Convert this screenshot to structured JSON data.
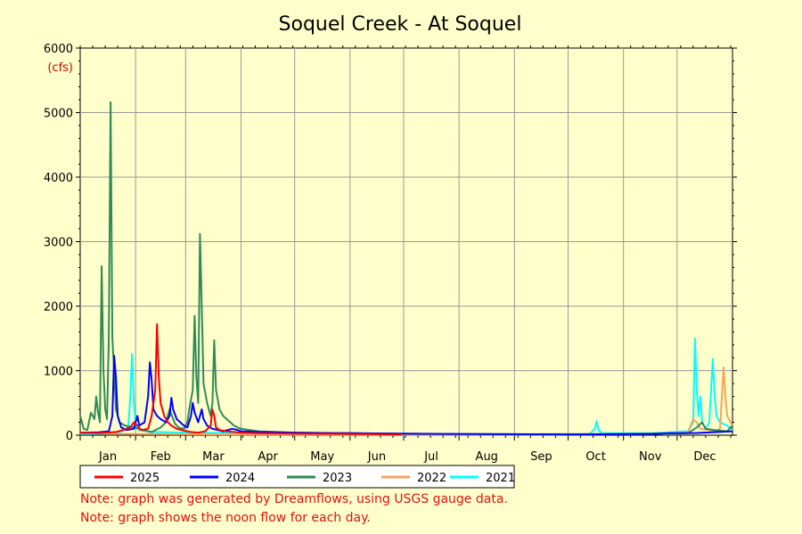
{
  "chart_data": {
    "type": "line",
    "title": "Soquel Creek - At Soquel",
    "ylabel": "(cfs)",
    "xlabel": "",
    "ylim": [
      0,
      6000
    ],
    "y_ticks": [
      0,
      1000,
      2000,
      3000,
      4000,
      5000,
      6000
    ],
    "x_range_days": [
      0,
      365
    ],
    "month_labels": [
      "Jan",
      "Feb",
      "Mar",
      "Apr",
      "May",
      "Jun",
      "Jul",
      "Aug",
      "Sep",
      "Oct",
      "Nov",
      "Dec"
    ],
    "grid": true,
    "legend_placement": "bottom-left",
    "series": [
      {
        "name": "2025",
        "color": "#ff0000",
        "points": [
          [
            0,
            40
          ],
          [
            10,
            35
          ],
          [
            20,
            50
          ],
          [
            25,
            90
          ],
          [
            28,
            120
          ],
          [
            30,
            200
          ],
          [
            32,
            150
          ],
          [
            34,
            80
          ],
          [
            38,
            100
          ],
          [
            40,
            300
          ],
          [
            42,
            700
          ],
          [
            43,
            1720
          ],
          [
            44,
            900
          ],
          [
            45,
            500
          ],
          [
            47,
            300
          ],
          [
            49,
            200
          ],
          [
            51,
            150
          ],
          [
            54,
            100
          ],
          [
            58,
            70
          ],
          [
            62,
            50
          ],
          [
            66,
            40
          ],
          [
            70,
            60
          ],
          [
            73,
            150
          ],
          [
            74,
            400
          ],
          [
            75,
            300
          ],
          [
            76,
            120
          ],
          [
            78,
            80
          ],
          [
            82,
            60
          ],
          [
            90,
            40
          ],
          [
            100,
            30
          ],
          [
            120,
            25
          ],
          [
            150,
            20
          ],
          [
            165,
            15
          ],
          [
            180,
            10
          ]
        ]
      },
      {
        "name": "2024",
        "color": "#0000ff",
        "points": [
          [
            0,
            40
          ],
          [
            10,
            45
          ],
          [
            16,
            60
          ],
          [
            18,
            300
          ],
          [
            19,
            1230
          ],
          [
            20,
            900
          ],
          [
            21,
            300
          ],
          [
            23,
            120
          ],
          [
            26,
            80
          ],
          [
            30,
            100
          ],
          [
            32,
            300
          ],
          [
            33,
            150
          ],
          [
            36,
            200
          ],
          [
            38,
            600
          ],
          [
            39,
            1130
          ],
          [
            40,
            850
          ],
          [
            41,
            400
          ],
          [
            43,
            300
          ],
          [
            45,
            250
          ],
          [
            48,
            200
          ],
          [
            50,
            300
          ],
          [
            51,
            580
          ],
          [
            52,
            400
          ],
          [
            54,
            250
          ],
          [
            56,
            200
          ],
          [
            58,
            150
          ],
          [
            60,
            120
          ],
          [
            62,
            300
          ],
          [
            63,
            500
          ],
          [
            64,
            350
          ],
          [
            66,
            200
          ],
          [
            67,
            300
          ],
          [
            68,
            400
          ],
          [
            69,
            250
          ],
          [
            71,
            150
          ],
          [
            74,
            100
          ],
          [
            77,
            80
          ],
          [
            80,
            60
          ],
          [
            85,
            100
          ],
          [
            88,
            80
          ],
          [
            90,
            60
          ],
          [
            100,
            50
          ],
          [
            120,
            40
          ],
          [
            150,
            30
          ],
          [
            180,
            25
          ],
          [
            210,
            20
          ],
          [
            240,
            15
          ],
          [
            280,
            10
          ],
          [
            300,
            15
          ],
          [
            320,
            20
          ],
          [
            330,
            30
          ],
          [
            345,
            35
          ],
          [
            365,
            60
          ]
        ]
      },
      {
        "name": "2023",
        "color": "#2e8b57",
        "points": [
          [
            0,
            300
          ],
          [
            2,
            100
          ],
          [
            4,
            80
          ],
          [
            6,
            350
          ],
          [
            8,
            250
          ],
          [
            9,
            600
          ],
          [
            10,
            350
          ],
          [
            11,
            200
          ],
          [
            12,
            2620
          ],
          [
            13,
            1000
          ],
          [
            14,
            400
          ],
          [
            15,
            250
          ],
          [
            16,
            1500
          ],
          [
            17,
            5160
          ],
          [
            18,
            1500
          ],
          [
            19,
            1000
          ],
          [
            20,
            400
          ],
          [
            22,
            200
          ],
          [
            25,
            150
          ],
          [
            30,
            120
          ],
          [
            35,
            80
          ],
          [
            38,
            60
          ],
          [
            40,
            50
          ],
          [
            45,
            120
          ],
          [
            48,
            200
          ],
          [
            50,
            400
          ],
          [
            51,
            320
          ],
          [
            53,
            180
          ],
          [
            55,
            120
          ],
          [
            58,
            100
          ],
          [
            60,
            200
          ],
          [
            61,
            400
          ],
          [
            63,
            700
          ],
          [
            64,
            1850
          ],
          [
            65,
            900
          ],
          [
            66,
            500
          ],
          [
            67,
            3120
          ],
          [
            68,
            2000
          ],
          [
            69,
            800
          ],
          [
            71,
            500
          ],
          [
            73,
            300
          ],
          [
            74,
            500
          ],
          [
            75,
            1470
          ],
          [
            76,
            700
          ],
          [
            78,
            400
          ],
          [
            80,
            300
          ],
          [
            82,
            250
          ],
          [
            84,
            200
          ],
          [
            86,
            150
          ],
          [
            88,
            120
          ],
          [
            90,
            100
          ],
          [
            95,
            80
          ],
          [
            100,
            60
          ],
          [
            110,
            50
          ],
          [
            120,
            40
          ],
          [
            150,
            30
          ],
          [
            200,
            20
          ],
          [
            250,
            15
          ],
          [
            300,
            20
          ],
          [
            340,
            30
          ],
          [
            345,
            120
          ],
          [
            348,
            200
          ],
          [
            350,
            100
          ],
          [
            355,
            80
          ],
          [
            362,
            60
          ],
          [
            365,
            150
          ]
        ]
      },
      {
        "name": "2022",
        "color": "#f4a460",
        "points": [
          [
            0,
            30
          ],
          [
            30,
            20
          ],
          [
            60,
            15
          ],
          [
            100,
            10
          ],
          [
            200,
            8
          ],
          [
            280,
            8
          ],
          [
            300,
            15
          ],
          [
            320,
            20
          ],
          [
            330,
            30
          ],
          [
            340,
            40
          ],
          [
            343,
            250
          ],
          [
            345,
            200
          ],
          [
            347,
            100
          ],
          [
            352,
            80
          ],
          [
            355,
            60
          ],
          [
            358,
            100
          ],
          [
            360,
            1050
          ],
          [
            361,
            600
          ],
          [
            362,
            300
          ],
          [
            364,
            200
          ],
          [
            365,
            150
          ]
        ]
      },
      {
        "name": "2021",
        "color": "#00ffff",
        "points": [
          [
            0,
            20
          ],
          [
            10,
            20
          ],
          [
            20,
            30
          ],
          [
            25,
            80
          ],
          [
            27,
            150
          ],
          [
            28,
            600
          ],
          [
            29,
            1260
          ],
          [
            30,
            500
          ],
          [
            31,
            150
          ],
          [
            33,
            80
          ],
          [
            40,
            50
          ],
          [
            60,
            40
          ],
          [
            100,
            30
          ],
          [
            150,
            20
          ],
          [
            200,
            15
          ],
          [
            260,
            10
          ],
          [
            285,
            15
          ],
          [
            288,
            100
          ],
          [
            289,
            220
          ],
          [
            290,
            80
          ],
          [
            292,
            30
          ],
          [
            320,
            30
          ],
          [
            340,
            60
          ],
          [
            343,
            200
          ],
          [
            344,
            1500
          ],
          [
            345,
            700
          ],
          [
            346,
            300
          ],
          [
            347,
            600
          ],
          [
            348,
            200
          ],
          [
            350,
            100
          ],
          [
            352,
            200
          ],
          [
            354,
            1180
          ],
          [
            355,
            600
          ],
          [
            356,
            300
          ],
          [
            358,
            200
          ],
          [
            362,
            150
          ],
          [
            365,
            80
          ]
        ]
      }
    ]
  },
  "notes": [
    "Note: graph was generated by Dreamflows, using USGS gauge data.",
    "Note: graph shows the noon flow for each day."
  ]
}
